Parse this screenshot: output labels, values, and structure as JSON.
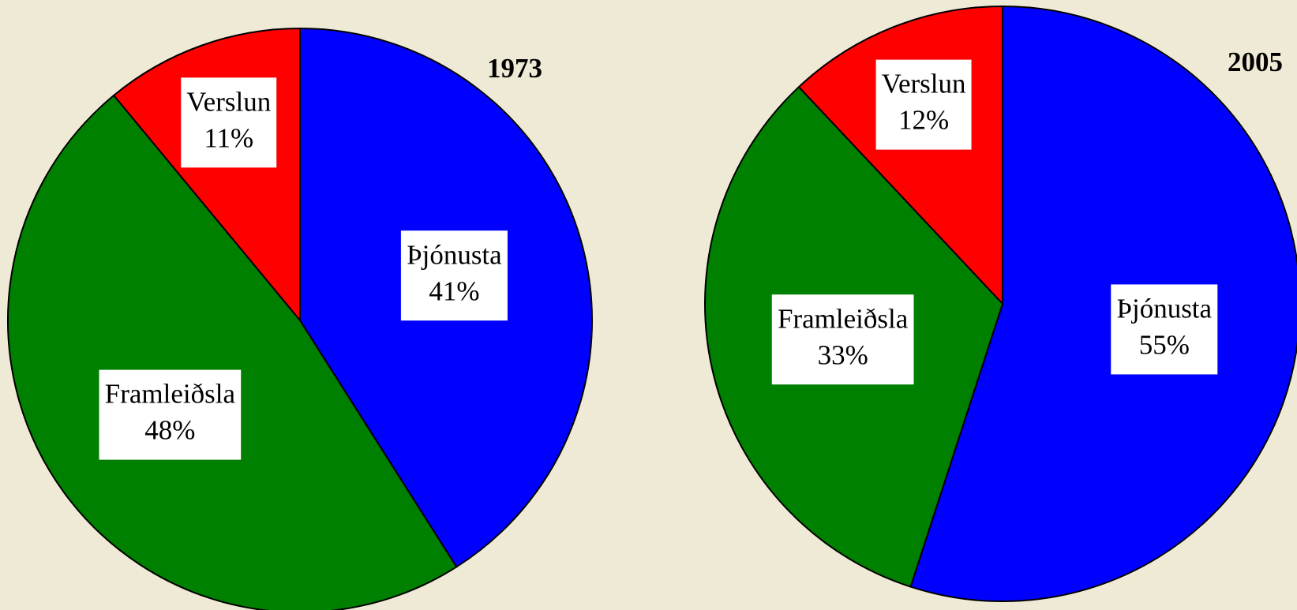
{
  "chart_data": [
    {
      "type": "pie",
      "title": "1973",
      "categories": [
        "Þjónusta",
        "Framleiðsla",
        "Verslun"
      ],
      "values": [
        41,
        48,
        11
      ],
      "value_labels": [
        "41%",
        "48%",
        "11%"
      ],
      "colors": [
        "#0000ff",
        "#008000",
        "#ff0000"
      ]
    },
    {
      "type": "pie",
      "title": "2005",
      "categories": [
        "Þjónusta",
        "Framleiðsla",
        "Verslun"
      ],
      "values": [
        55,
        33,
        12
      ],
      "value_labels": [
        "55%",
        "33%",
        "12%"
      ],
      "colors": [
        "#0000ff",
        "#008000",
        "#ff0000"
      ]
    }
  ]
}
